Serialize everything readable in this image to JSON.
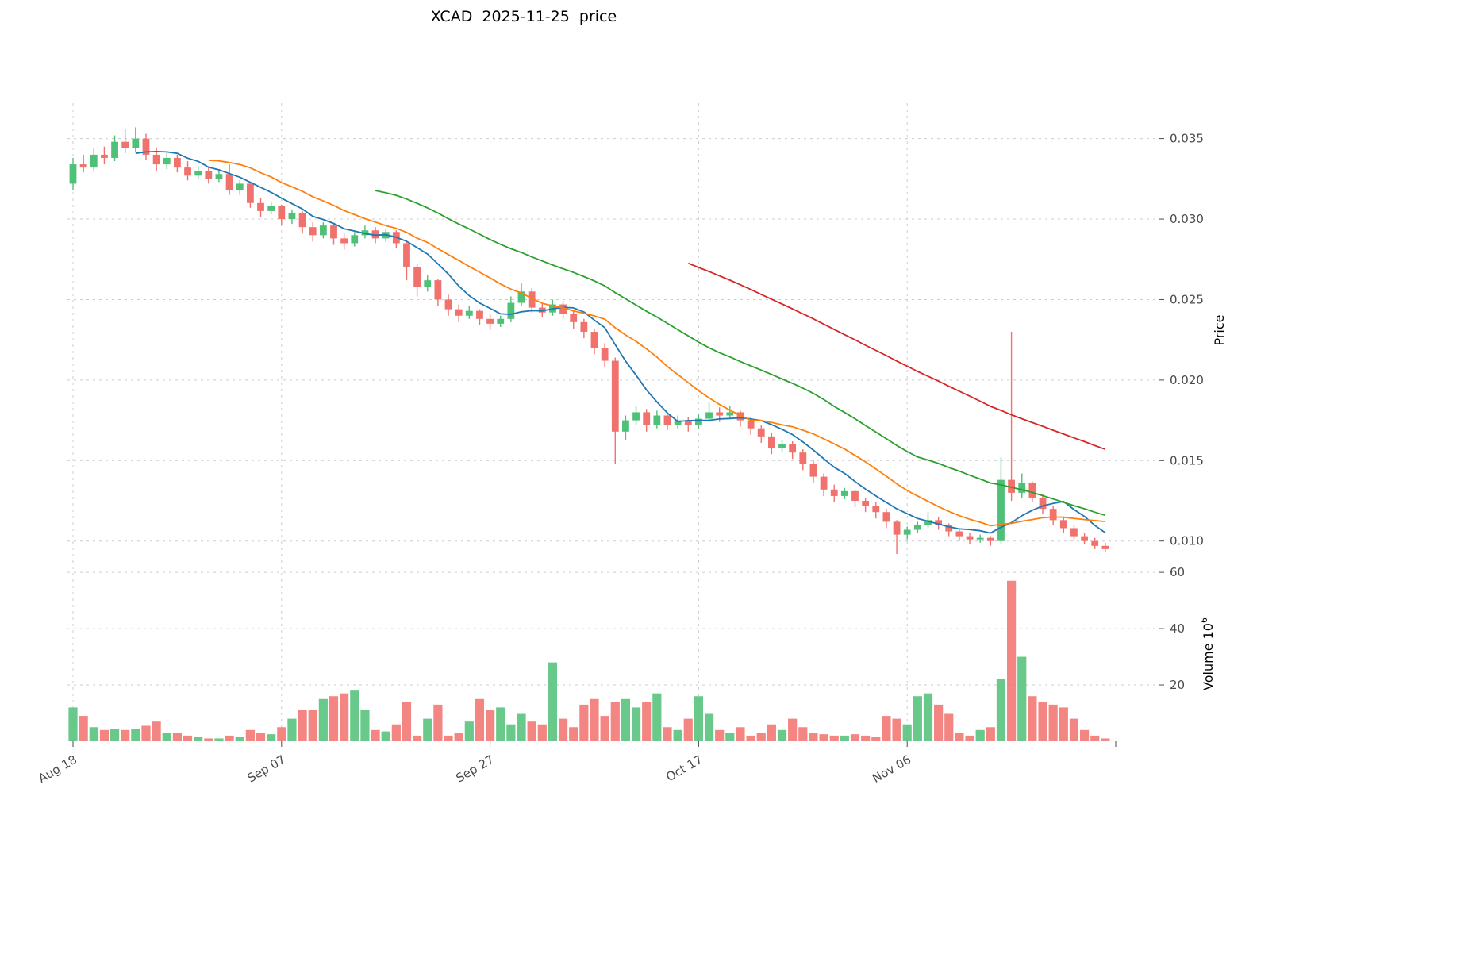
{
  "chart_data": {
    "type": "candlestick",
    "title": "XCAD  2025-11-25  price",
    "x_axis": {
      "tick_labels": [
        "Aug 18",
        "Sep 07",
        "Sep 27",
        "Oct 17",
        "Nov 06"
      ],
      "tick_indices": [
        0,
        20,
        40,
        60,
        80
      ],
      "extra_tick_index": 100
    },
    "y_axis": {
      "label": "Price",
      "ticks": [
        0.01,
        0.015,
        0.02,
        0.025,
        0.03,
        0.035
      ],
      "range": [
        0.009,
        0.0372
      ],
      "format_decimals": 3
    },
    "volume_axis": {
      "label": "Volume",
      "unit_base": "10",
      "unit_exponent": "6",
      "ticks": [
        20,
        40,
        60
      ],
      "range": [
        0,
        62
      ]
    },
    "candles": [
      [
        0.0322,
        0.0338,
        0.0318,
        0.0334
      ],
      [
        0.0334,
        0.034,
        0.0329,
        0.0332
      ],
      [
        0.0332,
        0.0344,
        0.033,
        0.034
      ],
      [
        0.034,
        0.0345,
        0.0334,
        0.0338
      ],
      [
        0.0338,
        0.0352,
        0.0336,
        0.0348
      ],
      [
        0.0348,
        0.0356,
        0.0341,
        0.0344
      ],
      [
        0.0344,
        0.0357,
        0.0342,
        0.035
      ],
      [
        0.035,
        0.0353,
        0.0337,
        0.034
      ],
      [
        0.034,
        0.0344,
        0.033,
        0.0334
      ],
      [
        0.0334,
        0.0341,
        0.0331,
        0.0338
      ],
      [
        0.0338,
        0.034,
        0.0329,
        0.0332
      ],
      [
        0.0332,
        0.0336,
        0.0324,
        0.0327
      ],
      [
        0.0327,
        0.0333,
        0.0325,
        0.033
      ],
      [
        0.033,
        0.0332,
        0.0322,
        0.0325
      ],
      [
        0.0325,
        0.0331,
        0.0323,
        0.0328
      ],
      [
        0.0328,
        0.0334,
        0.0315,
        0.0318
      ],
      [
        0.0318,
        0.0324,
        0.0315,
        0.0322
      ],
      [
        0.0322,
        0.0323,
        0.0307,
        0.031
      ],
      [
        0.031,
        0.0313,
        0.0301,
        0.0305
      ],
      [
        0.0305,
        0.0311,
        0.0303,
        0.0308
      ],
      [
        0.0308,
        0.0309,
        0.0296,
        0.03
      ],
      [
        0.03,
        0.0306,
        0.0297,
        0.0304
      ],
      [
        0.0304,
        0.0305,
        0.0291,
        0.0295
      ],
      [
        0.0295,
        0.0298,
        0.0286,
        0.029
      ],
      [
        0.029,
        0.0298,
        0.0288,
        0.0296
      ],
      [
        0.0296,
        0.0297,
        0.0284,
        0.0288
      ],
      [
        0.0288,
        0.0291,
        0.0281,
        0.0285
      ],
      [
        0.0285,
        0.0292,
        0.0283,
        0.029
      ],
      [
        0.029,
        0.0296,
        0.0288,
        0.0293
      ],
      [
        0.0293,
        0.0295,
        0.0285,
        0.0288
      ],
      [
        0.0288,
        0.0294,
        0.0286,
        0.0292
      ],
      [
        0.0292,
        0.0293,
        0.0282,
        0.0285
      ],
      [
        0.0285,
        0.0286,
        0.0262,
        0.027
      ],
      [
        0.027,
        0.0272,
        0.0252,
        0.0258
      ],
      [
        0.0258,
        0.0265,
        0.0255,
        0.0262
      ],
      [
        0.0262,
        0.0263,
        0.0246,
        0.025
      ],
      [
        0.025,
        0.0253,
        0.024,
        0.0244
      ],
      [
        0.0244,
        0.0247,
        0.0236,
        0.024
      ],
      [
        0.024,
        0.0246,
        0.0238,
        0.0243
      ],
      [
        0.0243,
        0.0244,
        0.0234,
        0.0238
      ],
      [
        0.0238,
        0.0241,
        0.0231,
        0.0235
      ],
      [
        0.0235,
        0.024,
        0.0233,
        0.0238
      ],
      [
        0.0238,
        0.0252,
        0.0236,
        0.0248
      ],
      [
        0.0248,
        0.026,
        0.0246,
        0.0255
      ],
      [
        0.0255,
        0.0257,
        0.0242,
        0.0245
      ],
      [
        0.0245,
        0.0248,
        0.0239,
        0.0242
      ],
      [
        0.0242,
        0.025,
        0.024,
        0.0247
      ],
      [
        0.0247,
        0.0249,
        0.0238,
        0.0241
      ],
      [
        0.0241,
        0.0243,
        0.0232,
        0.0236
      ],
      [
        0.0236,
        0.0238,
        0.0226,
        0.023
      ],
      [
        0.023,
        0.0232,
        0.0216,
        0.022
      ],
      [
        0.022,
        0.0223,
        0.0208,
        0.0212
      ],
      [
        0.0212,
        0.0214,
        0.0148,
        0.0168
      ],
      [
        0.0168,
        0.0178,
        0.0163,
        0.0175
      ],
      [
        0.0175,
        0.0184,
        0.0172,
        0.018
      ],
      [
        0.018,
        0.0182,
        0.0168,
        0.0172
      ],
      [
        0.0172,
        0.0181,
        0.017,
        0.0178
      ],
      [
        0.0178,
        0.018,
        0.0169,
        0.0172
      ],
      [
        0.0172,
        0.0178,
        0.017,
        0.0175
      ],
      [
        0.0175,
        0.0177,
        0.0168,
        0.0172
      ],
      [
        0.0172,
        0.0179,
        0.017,
        0.0176
      ],
      [
        0.0176,
        0.0186,
        0.0174,
        0.018
      ],
      [
        0.018,
        0.0183,
        0.0174,
        0.0178
      ],
      [
        0.0178,
        0.0184,
        0.0176,
        0.018
      ],
      [
        0.018,
        0.0181,
        0.0171,
        0.0175
      ],
      [
        0.0175,
        0.0177,
        0.0166,
        0.017
      ],
      [
        0.017,
        0.0172,
        0.0161,
        0.0165
      ],
      [
        0.0165,
        0.0167,
        0.0154,
        0.0158
      ],
      [
        0.0158,
        0.0163,
        0.0155,
        0.016
      ],
      [
        0.016,
        0.0162,
        0.0151,
        0.0155
      ],
      [
        0.0155,
        0.0157,
        0.0144,
        0.0148
      ],
      [
        0.0148,
        0.015,
        0.0136,
        0.014
      ],
      [
        0.014,
        0.0142,
        0.0128,
        0.0132
      ],
      [
        0.0132,
        0.0135,
        0.0124,
        0.0128
      ],
      [
        0.0128,
        0.0133,
        0.0126,
        0.0131
      ],
      [
        0.0131,
        0.0132,
        0.0121,
        0.0125
      ],
      [
        0.0125,
        0.0127,
        0.0118,
        0.0122
      ],
      [
        0.0122,
        0.0124,
        0.0114,
        0.0118
      ],
      [
        0.0118,
        0.012,
        0.0108,
        0.0112
      ],
      [
        0.0112,
        0.0113,
        0.0092,
        0.0104
      ],
      [
        0.0104,
        0.0109,
        0.0101,
        0.0107
      ],
      [
        0.0107,
        0.0112,
        0.0105,
        0.011
      ],
      [
        0.011,
        0.0118,
        0.0108,
        0.0113
      ],
      [
        0.0113,
        0.0115,
        0.0107,
        0.011
      ],
      [
        0.011,
        0.0111,
        0.0103,
        0.0106
      ],
      [
        0.0106,
        0.0108,
        0.01,
        0.0103
      ],
      [
        0.0103,
        0.0105,
        0.0098,
        0.0101
      ],
      [
        0.0101,
        0.0104,
        0.0099,
        0.0102
      ],
      [
        0.0102,
        0.0103,
        0.0097,
        0.01
      ],
      [
        0.01,
        0.0152,
        0.0098,
        0.0138
      ],
      [
        0.0138,
        0.023,
        0.0125,
        0.013
      ],
      [
        0.013,
        0.0142,
        0.0127,
        0.0136
      ],
      [
        0.0136,
        0.0137,
        0.0124,
        0.0127
      ],
      [
        0.0127,
        0.0129,
        0.0117,
        0.012
      ],
      [
        0.012,
        0.0122,
        0.011,
        0.0113
      ],
      [
        0.0113,
        0.0115,
        0.0105,
        0.0108
      ],
      [
        0.0108,
        0.011,
        0.01,
        0.0103
      ],
      [
        0.0103,
        0.0105,
        0.0098,
        0.01
      ],
      [
        0.01,
        0.0102,
        0.0095,
        0.0097
      ],
      [
        0.0097,
        0.0099,
        0.0093,
        0.0095
      ]
    ],
    "volumes": [
      12,
      9,
      5,
      4,
      4.5,
      4,
      4.5,
      5.5,
      7,
      3,
      3,
      2,
      1.5,
      1,
      1,
      2,
      1.5,
      4,
      3,
      2.5,
      5,
      8,
      11,
      11,
      15,
      16,
      17,
      18,
      11,
      4,
      3.5,
      6,
      14,
      2,
      8,
      13,
      2,
      3,
      7,
      15,
      11,
      12,
      6,
      10,
      7,
      6,
      28,
      8,
      5,
      13,
      15,
      9,
      14,
      15,
      12,
      14,
      17,
      5,
      4,
      8,
      16,
      10,
      4,
      3,
      5,
      2,
      3,
      6,
      4,
      8,
      5,
      3,
      2.5,
      2,
      2,
      2.5,
      2,
      1.5,
      9,
      8,
      6,
      16,
      17,
      13,
      10,
      3,
      2,
      4,
      5,
      22,
      57,
      30,
      16,
      14,
      13,
      12,
      8,
      4,
      2,
      1
    ],
    "overlays": [
      {
        "name": "ma-fast",
        "window": 7,
        "color": "#1f77b4"
      },
      {
        "name": "ma-medium",
        "window": 14,
        "color": "#ff7f0e"
      },
      {
        "name": "ma-slow",
        "window": 30,
        "color": "#2ca02c"
      },
      {
        "name": "ma-long",
        "window": 60,
        "color": "#d62728"
      }
    ],
    "colors": {
      "up": "#4fc077",
      "down": "#f1716c",
      "grid": "#cccccc",
      "tick_text": "#4a4a4a",
      "title_text": "#000000"
    },
    "layout": {
      "grid": "dashed",
      "legend": "none",
      "y_axis_side": "right"
    }
  }
}
